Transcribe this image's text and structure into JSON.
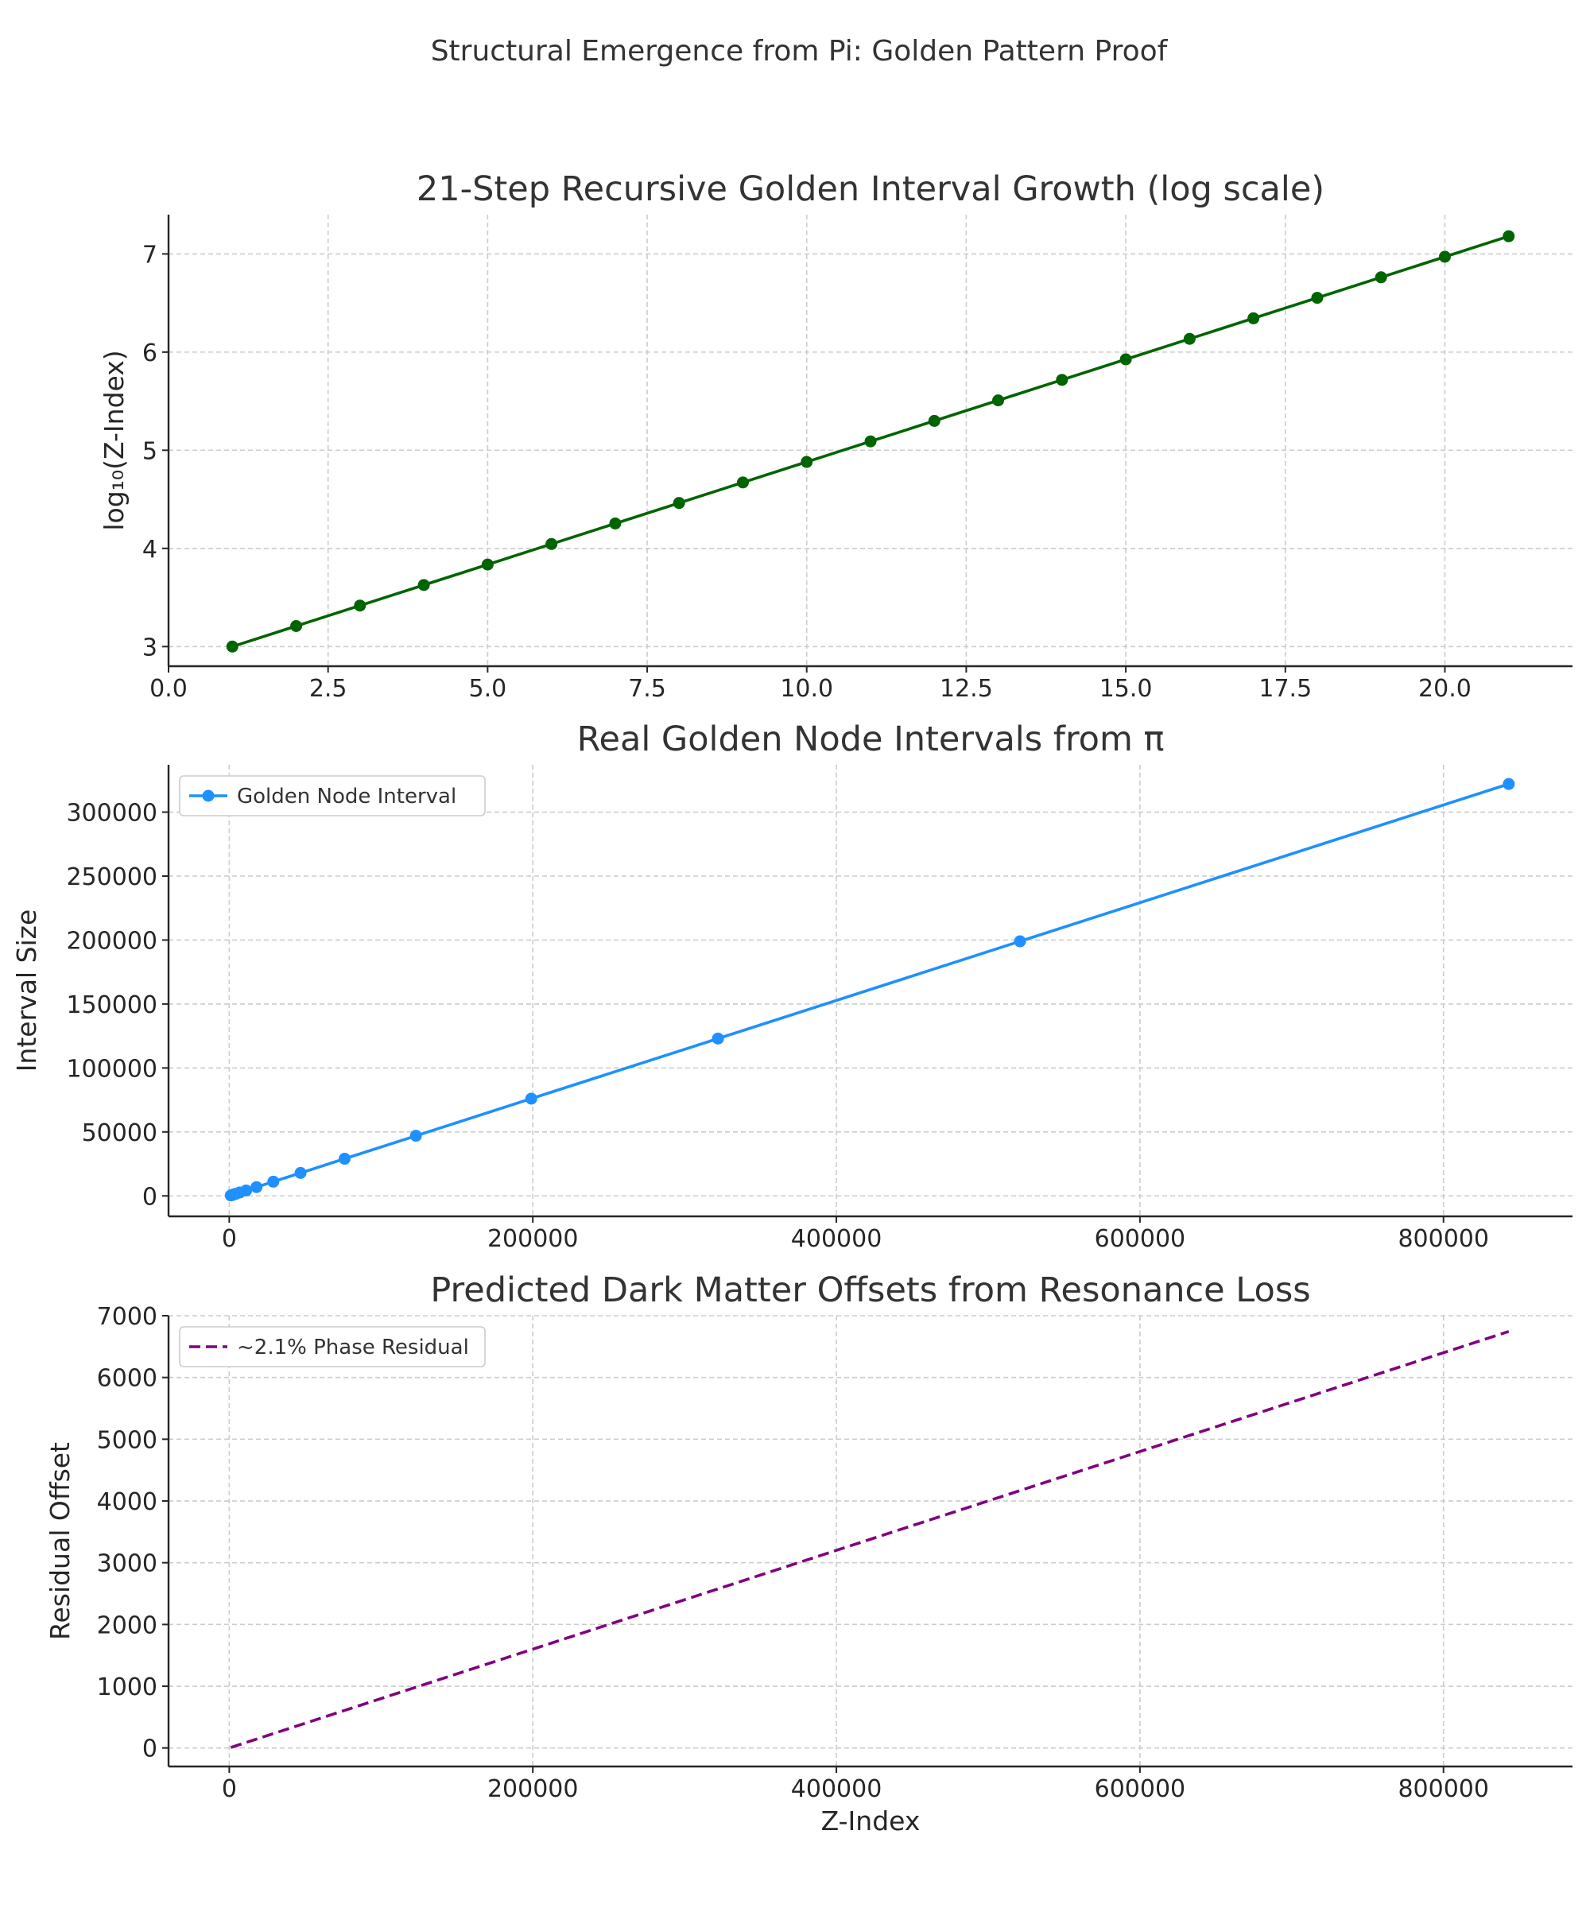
{
  "figure": {
    "suptitle": "Structural Emergence from Pi: Golden Pattern Proof"
  },
  "chart_data": [
    {
      "type": "line",
      "title": "21-Step Recursive Golden Interval Growth (log scale)",
      "xlabel": "",
      "ylabel": "log₁₀(Z-Index)",
      "xlim": [
        0,
        22
      ],
      "ylim": [
        2.8,
        7.4
      ],
      "xticks": [
        "0.0",
        "2.5",
        "5.0",
        "7.5",
        "10.0",
        "12.5",
        "15.0",
        "17.5",
        "20.0"
      ],
      "yticks": [
        "3",
        "4",
        "5",
        "6",
        "7"
      ],
      "grid": true,
      "color": "#006400",
      "markers": true,
      "series": [
        {
          "x": [
            1,
            2,
            3,
            4,
            5,
            6,
            7,
            8,
            9,
            10,
            11,
            12,
            13,
            14,
            15,
            16,
            17,
            18,
            19,
            20,
            21
          ],
          "y": [
            3.0,
            3.209,
            3.418,
            3.627,
            3.836,
            4.045,
            4.254,
            4.463,
            4.672,
            4.881,
            5.09,
            5.299,
            5.508,
            5.717,
            5.926,
            6.135,
            6.344,
            6.553,
            6.762,
            6.971,
            7.18
          ]
        }
      ]
    },
    {
      "type": "line",
      "title": "Real Golden Node Intervals from π",
      "xlabel": "",
      "ylabel": "Interval Size",
      "xlim": [
        -40000,
        885000
      ],
      "ylim": [
        -16000,
        337000
      ],
      "xticks": [
        "0",
        "200000",
        "400000",
        "600000",
        "800000"
      ],
      "yticks": [
        "0",
        "50000",
        "100000",
        "150000",
        "200000",
        "250000",
        "300000"
      ],
      "grid": true,
      "legend": "top-left",
      "color": "#1e90ff",
      "markers": true,
      "series": [
        {
          "name": "Golden Node Interval",
          "x": [
            1000,
            1618,
            2618,
            4236,
            6854,
            11090,
            17944,
            29034,
            46979,
            76013,
            122992,
            199005,
            321997,
            521002,
            842999
          ],
          "y": [
            382,
            618,
            1000,
            1618,
            2618,
            4236,
            6854,
            11090,
            17944,
            29034,
            46979,
            76013,
            122992,
            199005,
            321997
          ]
        }
      ]
    },
    {
      "type": "line",
      "title": "Predicted Dark Matter Offsets from Resonance Loss",
      "xlabel": "Z-Index",
      "ylabel": "Residual Offset",
      "xlim": [
        -40000,
        885000
      ],
      "ylim": [
        -300,
        7000
      ],
      "xticks": [
        "0",
        "200000",
        "400000",
        "600000",
        "800000"
      ],
      "yticks": [
        "0",
        "1000",
        "2000",
        "3000",
        "4000",
        "5000",
        "6000",
        "7000"
      ],
      "grid": true,
      "legend": "top-left",
      "color": "#800080",
      "dashed": true,
      "markers": false,
      "series": [
        {
          "name": "~2.1% Phase Residual",
          "x": [
            1000,
            843000
          ],
          "y": [
            8,
            6745
          ]
        }
      ]
    }
  ]
}
